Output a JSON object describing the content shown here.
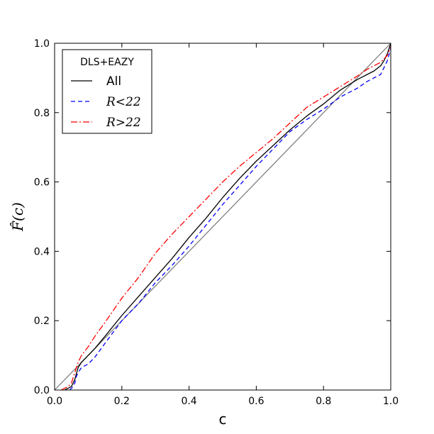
{
  "chart_data": {
    "type": "line",
    "xlabel": "c",
    "ylabel": "F̂(c)",
    "xlim": [
      0.0,
      1.0
    ],
    "ylim": [
      0.0,
      1.0
    ],
    "xticks": [
      "0.0",
      "0.2",
      "0.4",
      "0.6",
      "0.8",
      "1.0"
    ],
    "yticks": [
      "0.0",
      "0.2",
      "0.4",
      "0.6",
      "0.8",
      "1.0"
    ],
    "grid": false,
    "legend": {
      "title": "DLS+EAZY",
      "placement": "top-left",
      "entries": [
        "All",
        "R<22",
        "R>22"
      ]
    },
    "diagonal": {
      "x": [
        0.0,
        1.0
      ],
      "y": [
        0.0,
        1.0
      ],
      "color": "#808080"
    },
    "series": [
      {
        "name": "All",
        "color": "#000000",
        "style": "solid",
        "x": [
          0.03,
          0.04,
          0.05,
          0.06,
          0.07,
          0.08,
          0.1,
          0.12,
          0.15,
          0.2,
          0.25,
          0.3,
          0.35,
          0.4,
          0.45,
          0.5,
          0.55,
          0.6,
          0.65,
          0.7,
          0.75,
          0.8,
          0.85,
          0.9,
          0.93,
          0.95,
          0.97,
          0.98,
          0.99,
          1.0
        ],
        "y": [
          0.0,
          0.005,
          0.01,
          0.03,
          0.065,
          0.08,
          0.1,
          0.12,
          0.155,
          0.215,
          0.27,
          0.325,
          0.38,
          0.44,
          0.495,
          0.555,
          0.61,
          0.66,
          0.705,
          0.75,
          0.79,
          0.825,
          0.865,
          0.895,
          0.91,
          0.92,
          0.935,
          0.95,
          0.97,
          1.0
        ]
      },
      {
        "name": "R<22",
        "color": "#0000ff",
        "style": "dashed",
        "x": [
          0.045,
          0.05,
          0.055,
          0.06,
          0.065,
          0.07,
          0.08,
          0.1,
          0.12,
          0.15,
          0.2,
          0.25,
          0.3,
          0.35,
          0.4,
          0.45,
          0.5,
          0.55,
          0.6,
          0.65,
          0.7,
          0.75,
          0.8,
          0.85,
          0.9,
          0.93,
          0.95,
          0.97,
          0.98,
          0.99,
          1.0
        ],
        "y": [
          0.0,
          0.005,
          0.01,
          0.02,
          0.04,
          0.05,
          0.065,
          0.075,
          0.095,
          0.135,
          0.2,
          0.25,
          0.31,
          0.36,
          0.415,
          0.475,
          0.535,
          0.59,
          0.645,
          0.695,
          0.745,
          0.78,
          0.81,
          0.845,
          0.87,
          0.89,
          0.9,
          0.91,
          0.93,
          0.95,
          0.985
        ]
      },
      {
        "name": "R>22",
        "color": "#ff0000",
        "style": "dashdot",
        "x": [
          0.02,
          0.03,
          0.04,
          0.05,
          0.06,
          0.07,
          0.08,
          0.1,
          0.12,
          0.15,
          0.2,
          0.25,
          0.3,
          0.35,
          0.4,
          0.45,
          0.5,
          0.55,
          0.6,
          0.65,
          0.7,
          0.75,
          0.8,
          0.85,
          0.9,
          0.93,
          0.95,
          0.97,
          0.98,
          0.99,
          1.0
        ],
        "y": [
          0.0,
          0.005,
          0.01,
          0.02,
          0.05,
          0.08,
          0.1,
          0.125,
          0.155,
          0.195,
          0.265,
          0.325,
          0.395,
          0.45,
          0.5,
          0.55,
          0.6,
          0.645,
          0.685,
          0.725,
          0.77,
          0.815,
          0.845,
          0.875,
          0.905,
          0.925,
          0.935,
          0.945,
          0.955,
          0.965,
          0.99
        ]
      }
    ]
  }
}
